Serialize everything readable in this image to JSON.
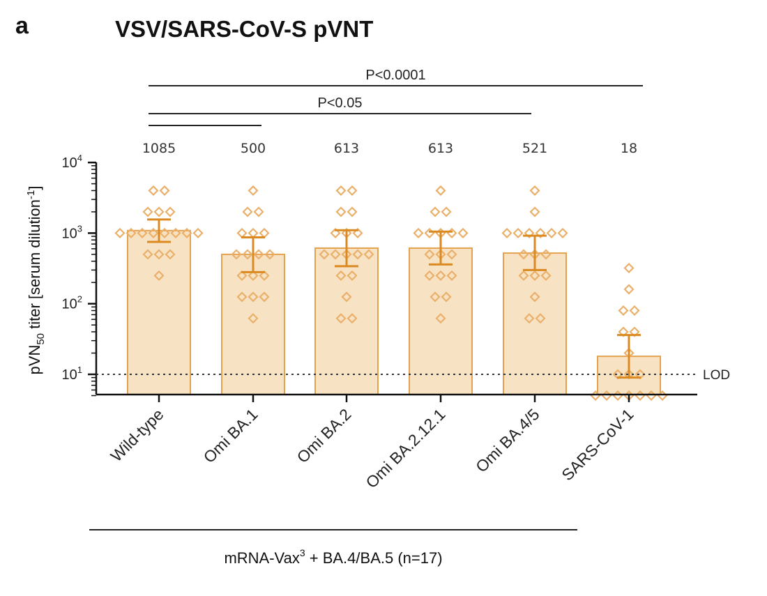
{
  "panel_letter": "a",
  "chart_data": {
    "type": "bar",
    "title": "VSV/SARS-CoV-S pVNT",
    "ylabel": {
      "pre": "pVN",
      "sub": "50",
      "mid": " titer [serum dilution",
      "sup": "-1",
      "post": "]"
    },
    "yscale": "log",
    "ylim": [
      5,
      10000
    ],
    "yticks": [
      {
        "base": "10",
        "exp": "1",
        "value": 10
      },
      {
        "base": "10",
        "exp": "2",
        "value": 100
      },
      {
        "base": "10",
        "exp": "3",
        "value": 1000
      },
      {
        "base": "10",
        "exp": "4",
        "value": 10000
      }
    ],
    "categories": [
      "Wild-type",
      "Omi BA.1",
      "Omi BA.2",
      "Omi BA.2.12.1",
      "Omi BA.4/5",
      "SARS-CoV-1"
    ],
    "values": [
      1085,
      500,
      613,
      613,
      521,
      18
    ],
    "value_labels": [
      "1085",
      "500",
      "613",
      "613",
      "521",
      "18"
    ],
    "error_bars": [
      {
        "low": 750,
        "high": 1560
      },
      {
        "low": 280,
        "high": 870
      },
      {
        "low": 340,
        "high": 1100
      },
      {
        "low": 360,
        "high": 1050
      },
      {
        "low": 300,
        "high": 920
      },
      {
        "low": 9,
        "high": 36
      }
    ],
    "points": [
      [
        4000,
        4000,
        2000,
        2000,
        2000,
        1000,
        1000,
        1000,
        1000,
        1000,
        1000,
        1000,
        1000,
        500,
        500,
        500,
        250
      ],
      [
        4000,
        2000,
        2000,
        1000,
        1000,
        1000,
        500,
        500,
        500,
        500,
        250,
        250,
        250,
        125,
        125,
        125,
        62
      ],
      [
        4000,
        4000,
        2000,
        2000,
        1000,
        1000,
        1000,
        500,
        500,
        500,
        500,
        500,
        250,
        250,
        125,
        62,
        62
      ],
      [
        4000,
        2000,
        2000,
        1000,
        1000,
        1000,
        1000,
        1000,
        500,
        500,
        500,
        250,
        250,
        250,
        125,
        125,
        62
      ],
      [
        4000,
        2000,
        1000,
        1000,
        1000,
        1000,
        1000,
        1000,
        500,
        500,
        500,
        250,
        250,
        250,
        125,
        62,
        62
      ],
      [
        320,
        160,
        80,
        80,
        40,
        40,
        20,
        10,
        10,
        10,
        5,
        5,
        5,
        5,
        5,
        5,
        5
      ]
    ],
    "reference_line": {
      "label": "LOD",
      "value": 10
    },
    "comparisons": [
      {
        "from": 0,
        "to": 5,
        "label": "P<0.0001"
      },
      {
        "from": 0,
        "to": 4,
        "label": "P<0.05"
      },
      {
        "from": 0,
        "to": 1,
        "label": ""
      }
    ],
    "group": {
      "text": "mRNA-Vax",
      "sup": "3",
      "rest": " + BA.4/BA.5 (n=17)",
      "span": [
        0,
        4
      ]
    },
    "colors": {
      "bar_fill": "#f7e2c4",
      "bar_stroke": "#e4a24e",
      "point": "#eab06a",
      "error": "#db8a22",
      "axis": "#111111"
    }
  }
}
